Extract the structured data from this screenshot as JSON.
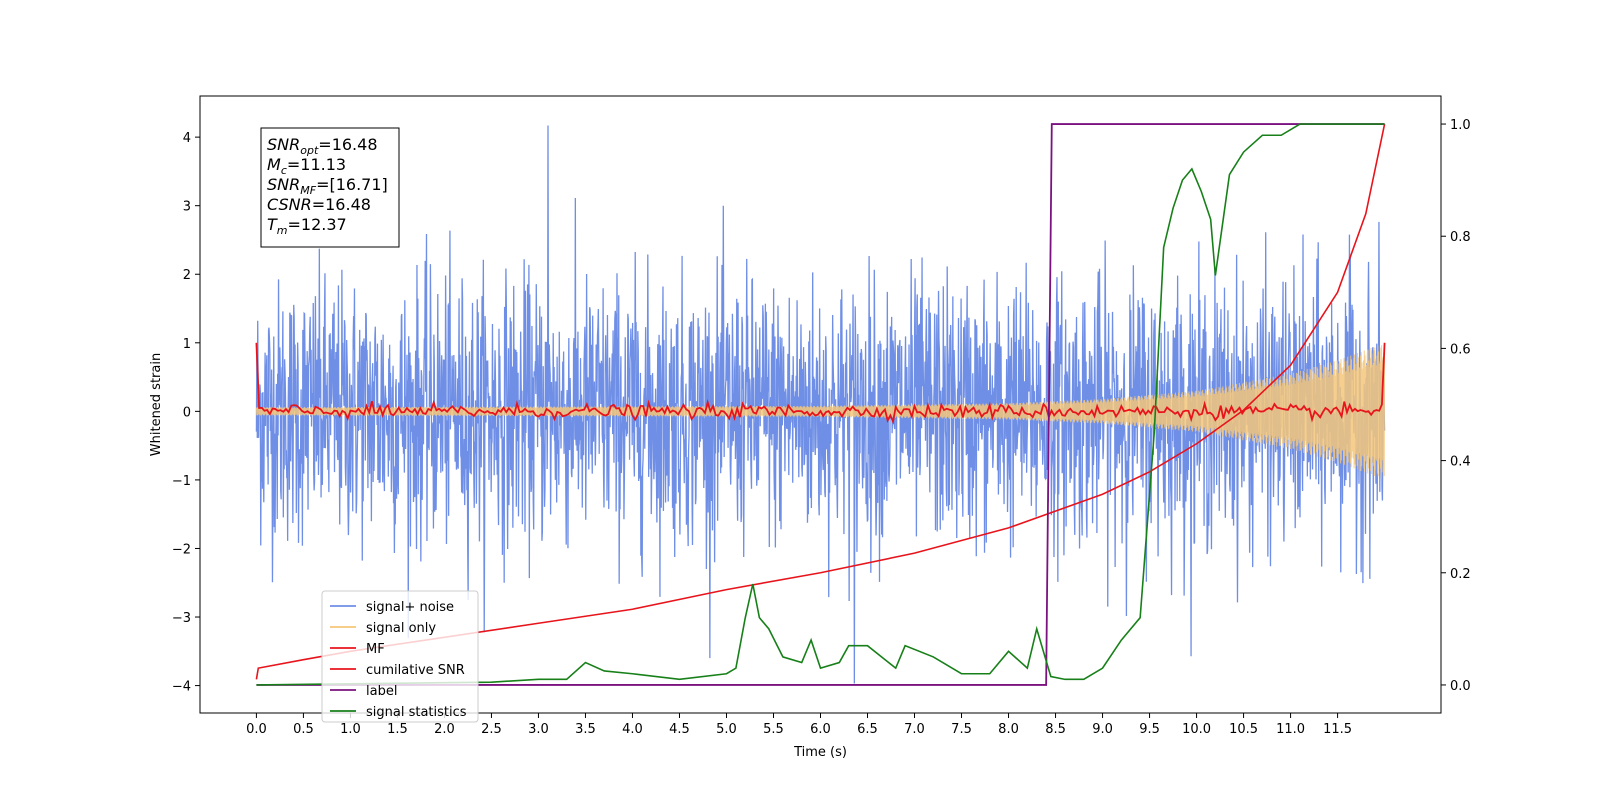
{
  "chart_data": {
    "type": "line",
    "xlabel": "Time (s)",
    "ylabel": "Whitened strain",
    "xlim": [
      -0.6,
      12.6
    ],
    "ylim": [
      -4.4,
      4.6
    ],
    "y2lim": [
      -0.05,
      1.05
    ],
    "grid": false,
    "legend_position": "lower-left",
    "x_ticks": [
      "0.0",
      "0.5",
      "1.0",
      "1.5",
      "2.0",
      "2.5",
      "3.0",
      "3.5",
      "4.0",
      "4.5",
      "5.0",
      "5.5",
      "6.0",
      "6.5",
      "7.0",
      "7.5",
      "8.0",
      "8.5",
      "9.0",
      "9.5",
      "10.0",
      "10.5",
      "11.0",
      "11.5"
    ],
    "y_ticks": [
      -4,
      -3,
      -2,
      -1,
      0,
      1,
      2,
      3,
      4
    ],
    "y2_ticks": [
      "0.0",
      "0.2",
      "0.4",
      "0.6",
      "0.8",
      "1.0"
    ],
    "annotation": [
      {
        "base": "SNR",
        "sub": "opt",
        "rest": "=16.48"
      },
      {
        "base": "M",
        "sub": "c",
        "rest": "=11.13"
      },
      {
        "base": "SNR",
        "sub": "MF",
        "rest": "=[16.71]"
      },
      {
        "base": "CSNR",
        "sub": "",
        "rest": "=16.48"
      },
      {
        "base": "T",
        "sub": "m",
        "rest": "=12.37"
      }
    ],
    "series": [
      {
        "name": "signal+ noise",
        "color": "#6f8fe6",
        "axis": "left",
        "kind": "noise",
        "x_range": [
          0,
          12
        ],
        "amplitude_std": 0.95,
        "peak": [
          3.1,
          4.17
        ],
        "min": [
          -3.97
        ]
      },
      {
        "name": "signal only",
        "color": "#f5c77a",
        "axis": "left",
        "kind": "chirp",
        "x_range": [
          0,
          12
        ],
        "envelope": {
          "x": [
            0,
            6,
            8,
            9,
            10,
            11,
            11.5,
            12
          ],
          "amp": [
            0.06,
            0.08,
            0.12,
            0.18,
            0.3,
            0.55,
            0.75,
            1.0
          ]
        }
      },
      {
        "name": "MF",
        "color": "#e8141c",
        "axis": "left",
        "kind": "flat-noisy",
        "x_range": [
          0,
          12
        ],
        "start": 1.0,
        "end": 1.0,
        "noise_std": 0.05
      },
      {
        "name": "cumilative SNR",
        "color": "#e8141c",
        "axis": "right",
        "x": [
          0.0,
          0.02,
          0.5,
          1.0,
          2.0,
          3.0,
          4.0,
          5.0,
          6.0,
          7.0,
          8.0,
          9.0,
          9.5,
          10.0,
          10.5,
          11.0,
          11.5,
          11.8,
          12.0
        ],
        "y": [
          0.01,
          0.03,
          0.045,
          0.06,
          0.085,
          0.11,
          0.135,
          0.17,
          0.2,
          0.235,
          0.28,
          0.34,
          0.38,
          0.43,
          0.49,
          0.57,
          0.7,
          0.84,
          1.0
        ]
      },
      {
        "name": "label",
        "color": "#7b1280",
        "axis": "right",
        "x": [
          0.0,
          8.4,
          8.4,
          8.46,
          12.0
        ],
        "y": [
          0.0,
          0.0,
          0.0,
          1.0,
          1.0
        ]
      },
      {
        "name": "signal statistics",
        "color": "#178019",
        "axis": "right",
        "x": [
          0.0,
          1.0,
          2.0,
          2.5,
          3.0,
          3.3,
          3.5,
          3.7,
          4.0,
          4.5,
          5.0,
          5.1,
          5.2,
          5.28,
          5.35,
          5.45,
          5.6,
          5.8,
          5.9,
          6.0,
          6.2,
          6.3,
          6.5,
          6.8,
          6.9,
          7.2,
          7.5,
          7.8,
          8.0,
          8.2,
          8.3,
          8.45,
          8.6,
          8.8,
          9.0,
          9.2,
          9.4,
          9.55,
          9.65,
          9.75,
          9.85,
          9.95,
          10.05,
          10.15,
          10.2,
          10.35,
          10.5,
          10.7,
          10.9,
          11.1,
          11.3,
          11.5,
          12.0
        ],
        "y": [
          0.0,
          0.002,
          0.004,
          0.005,
          0.01,
          0.01,
          0.04,
          0.025,
          0.02,
          0.01,
          0.02,
          0.03,
          0.12,
          0.18,
          0.12,
          0.1,
          0.05,
          0.04,
          0.08,
          0.03,
          0.04,
          0.07,
          0.07,
          0.03,
          0.07,
          0.05,
          0.02,
          0.02,
          0.06,
          0.03,
          0.1,
          0.015,
          0.01,
          0.01,
          0.03,
          0.08,
          0.12,
          0.45,
          0.78,
          0.85,
          0.9,
          0.92,
          0.88,
          0.83,
          0.73,
          0.91,
          0.95,
          0.98,
          0.98,
          1.0,
          1.0,
          1.0,
          1.0
        ]
      }
    ]
  }
}
